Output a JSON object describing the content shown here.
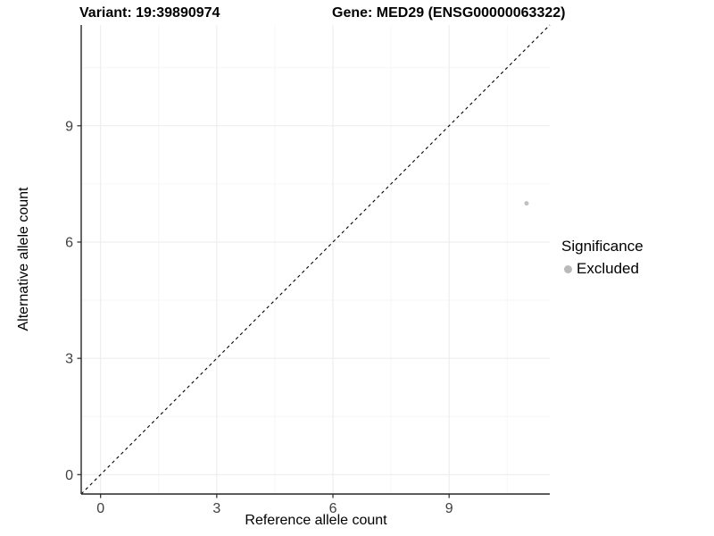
{
  "titles": {
    "variant": "Variant: 19:39890974",
    "gene": "Gene: MED29 (ENSG00000063322)"
  },
  "legend": {
    "title": "Significance",
    "items": [
      {
        "label": "Excluded",
        "color": "#b9b9b9"
      }
    ]
  },
  "chart_data": {
    "type": "scatter",
    "xlabel": "Reference allele count",
    "ylabel": "Alternative allele count",
    "xlim": [
      -0.5,
      11.6
    ],
    "ylim": [
      -0.5,
      11.6
    ],
    "x_ticks": [
      0,
      3,
      6,
      9
    ],
    "y_ticks": [
      0,
      3,
      6,
      9
    ],
    "x_minor_ticks": [
      1.5,
      4.5,
      7.5,
      10.5
    ],
    "y_minor_ticks": [
      1.5,
      4.5,
      7.5,
      10.5
    ],
    "grid": "major+minor",
    "legend_position": "right",
    "series": [
      {
        "name": "Excluded",
        "color": "#c0c0c0",
        "points": [
          {
            "x": 11,
            "y": 7
          }
        ]
      }
    ],
    "reference_line": {
      "type": "identity",
      "style": "dashed",
      "color": "#000000"
    }
  },
  "style": {
    "grid_major_color": "#ebebeb",
    "grid_minor_color": "#f6f6f6",
    "axis_line_color": "#262626",
    "tick_label_color": "#404040",
    "point_radius": 2.5
  }
}
